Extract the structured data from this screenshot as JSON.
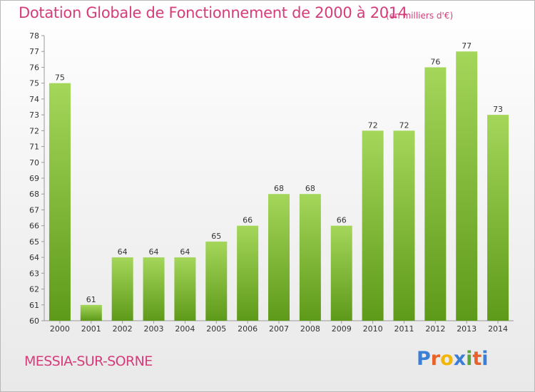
{
  "header": {
    "title": "Dotation Globale de Fonctionnement de 2000 à 2014",
    "unit": "(en milliers d'€)"
  },
  "footer": {
    "commune": "MESSIA-SUR-SORNE",
    "logo_text": "Proxiti",
    "logo_colors": [
      "#3a7fd5",
      "#e8632b",
      "#f2b705",
      "#3a7fd5",
      "#5aa63a",
      "#e8632b",
      "#3a7fd5"
    ]
  },
  "colors": {
    "title": "#d63c7a",
    "bar_top": "#a4d65a",
    "bar_bottom": "#5e9a1a"
  },
  "chart_data": {
    "type": "bar",
    "categories": [
      "2000",
      "2001",
      "2002",
      "2003",
      "2004",
      "2005",
      "2006",
      "2007",
      "2008",
      "2009",
      "2010",
      "2011",
      "2012",
      "2013",
      "2014"
    ],
    "values": [
      75,
      61,
      64,
      64,
      64,
      65,
      66,
      68,
      68,
      66,
      72,
      72,
      76,
      77,
      73
    ],
    "title": "Dotation Globale de Fonctionnement de 2000 à 2014",
    "ylim": [
      60,
      78
    ],
    "yticks": [
      60,
      61,
      62,
      63,
      64,
      65,
      66,
      67,
      68,
      69,
      70,
      71,
      72,
      73,
      74,
      75,
      76,
      77,
      78
    ],
    "grid": false,
    "legend": "none"
  }
}
